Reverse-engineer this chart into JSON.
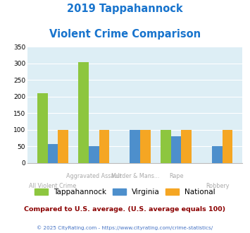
{
  "title_line1": "2019 Tappahannock",
  "title_line2": "Violent Crime Comparison",
  "title_color": "#1874cd",
  "categories": [
    "All Violent Crime",
    "Aggravated Assault",
    "Murder & Mans...",
    "Rape",
    "Robbery"
  ],
  "tappahannock": [
    210,
    303,
    0,
    100,
    0
  ],
  "virginia": [
    57,
    50,
    100,
    80,
    50
  ],
  "national": [
    100,
    100,
    100,
    100,
    100
  ],
  "tappahannock_color": "#8dc63f",
  "virginia_color": "#4d8fcc",
  "national_color": "#f5a623",
  "ylim": [
    0,
    350
  ],
  "yticks": [
    0,
    50,
    100,
    150,
    200,
    250,
    300,
    350
  ],
  "plot_bg": "#ddeef5",
  "legend_labels": [
    "Tappahannock",
    "Virginia",
    "National"
  ],
  "xtick_top": [
    "",
    "Aggravated Assault",
    "Murder & Mans...",
    "Rape",
    ""
  ],
  "xtick_bot": [
    "All Violent Crime",
    "",
    "",
    "",
    "Robbery"
  ],
  "note": "Compared to U.S. average. (U.S. average equals 100)",
  "note_color": "#8b0000",
  "copyright": "© 2025 CityRating.com - https://www.cityrating.com/crime-statistics/",
  "copyright_color": "#4472c4",
  "xtick_color": "#aaaaaa"
}
